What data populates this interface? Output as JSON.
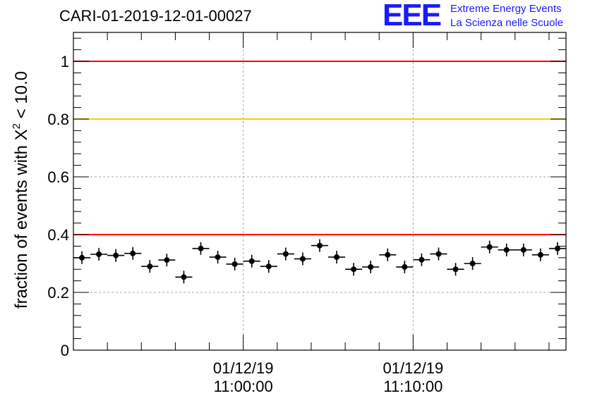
{
  "header": {
    "title": "CARI-01-2019-12-01-00027",
    "logo_mark": "EEE",
    "logo_line1": "Extreme Energy Events",
    "logo_line2": "La Scienza nelle Scuole"
  },
  "chart_data": {
    "type": "scatter",
    "title": "CARI-01-2019-12-01-00027",
    "ylabel": "fraction of events with X² < 10.0",
    "ylabel_parts": {
      "main": "fraction of events with X",
      "sup": "2",
      "tail": " < 10.0"
    },
    "xlabel": "",
    "x_unit": "minutes",
    "xlim": [
      0,
      29
    ],
    "ylim": [
      0,
      1.1
    ],
    "y_ticks": [
      0,
      0.2,
      0.4,
      0.6,
      0.8,
      1
    ],
    "y_tick_labels": [
      "0",
      "0.2",
      "0.4",
      "0.6",
      "0.8",
      "1"
    ],
    "x_ticks": [
      {
        "x": 10,
        "date": "01/12/19",
        "time": "11:00:00"
      },
      {
        "x": 20,
        "date": "01/12/19",
        "time": "11:10:00"
      }
    ],
    "grid": true,
    "reference_lines": [
      {
        "y": 1.0,
        "color": "#ff0000"
      },
      {
        "y": 0.8,
        "color": "#ffcc00"
      },
      {
        "y": 0.4,
        "color": "#ff0000"
      }
    ],
    "point_color": "#000000",
    "x_error_half_width": 0.5,
    "y_error": 0.022,
    "series": [
      {
        "x": [
          0.5,
          1.5,
          2.5,
          3.5,
          4.5,
          5.5,
          6.5,
          7.5,
          8.5,
          9.5,
          10.5,
          11.5,
          12.5,
          13.5,
          14.5,
          15.5,
          16.5,
          17.5,
          18.5,
          19.5,
          20.5,
          21.5,
          22.5,
          23.5,
          24.5,
          25.5,
          26.5,
          27.5,
          28.5
        ],
        "y": [
          0.32,
          0.332,
          0.328,
          0.335,
          0.29,
          0.312,
          0.253,
          0.352,
          0.322,
          0.298,
          0.308,
          0.29,
          0.333,
          0.316,
          0.362,
          0.322,
          0.28,
          0.288,
          0.33,
          0.288,
          0.313,
          0.333,
          0.28,
          0.3,
          0.357,
          0.347,
          0.347,
          0.33,
          0.352
        ]
      }
    ]
  }
}
